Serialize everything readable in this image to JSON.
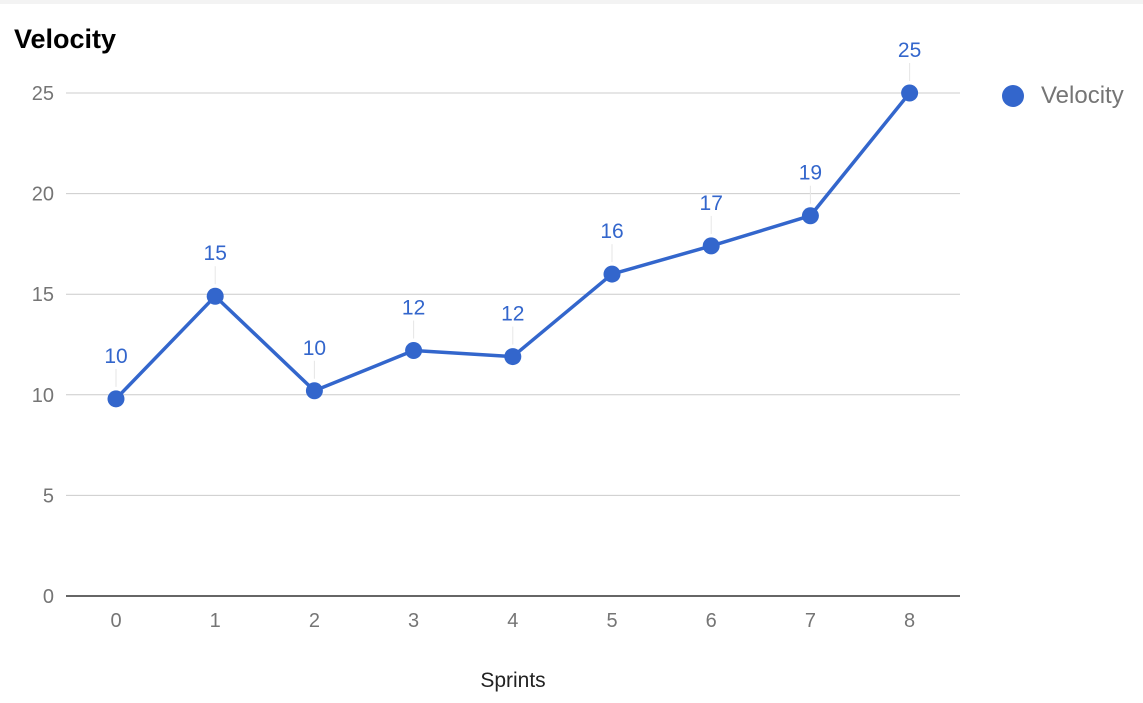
{
  "chart_data": {
    "type": "line",
    "title": "Velocity",
    "xlabel": "Sprints",
    "ylabel": "",
    "x": [
      0,
      1,
      2,
      3,
      4,
      5,
      6,
      7,
      8
    ],
    "ylim": [
      0,
      25
    ],
    "yticks": [
      0,
      5,
      10,
      15,
      20,
      25
    ],
    "grid": true,
    "legend": "right",
    "series": [
      {
        "name": "Velocity",
        "values": [
          9.8,
          14.9,
          10.2,
          12.2,
          11.9,
          16,
          17.4,
          18.9,
          25
        ],
        "labels": [
          "10",
          "15",
          "10",
          "12",
          "12",
          "16",
          "17",
          "19",
          "25"
        ],
        "color": "#3366cc"
      }
    ],
    "colors": {
      "series": "#3366cc",
      "grid": "#cccccc",
      "axis": "#333333",
      "tick_text": "#757575",
      "title_text": "#000000",
      "label_text": "#3366cc"
    }
  }
}
